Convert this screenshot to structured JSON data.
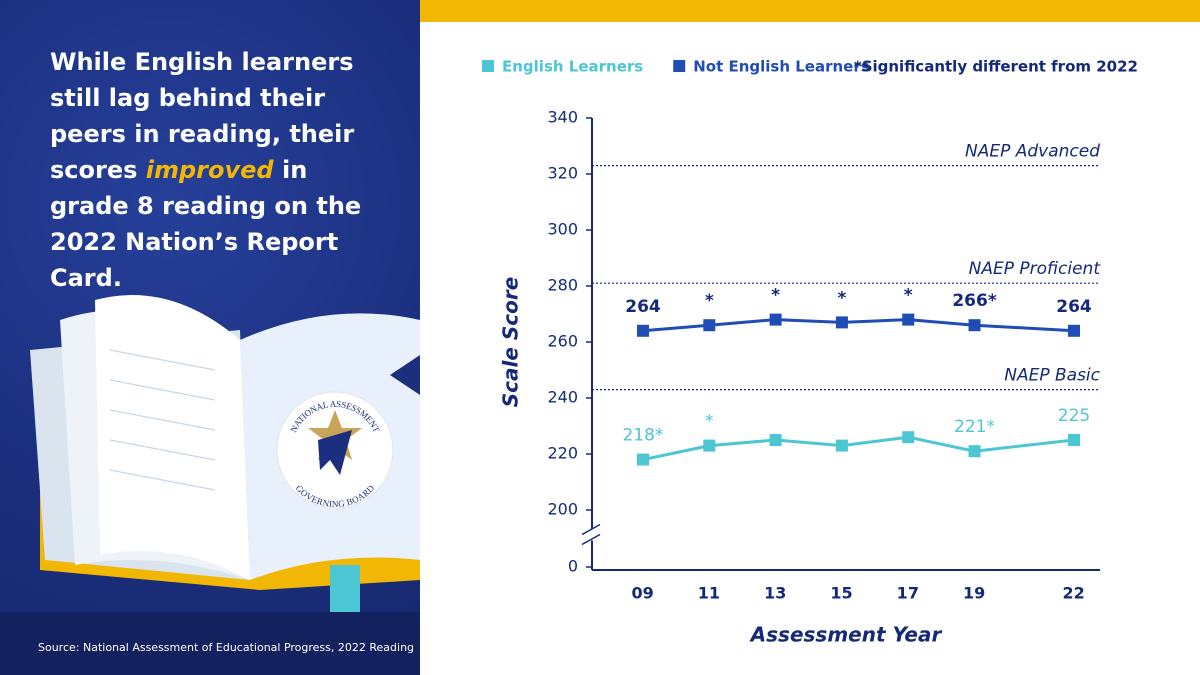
{
  "panel": {
    "headline": [
      "While English learners still lag behind their peers in reading, their scores ",
      "improved",
      " in grade 8 reading on the 2022 Nation’s Report Card."
    ],
    "source": "Source: National Assessment of Educational Progress, 2022 Reading",
    "logo": {
      "top": "NATIONAL ASSESSMENT",
      "bottom": "GOVERNING BOARD"
    }
  },
  "chart_data": {
    "type": "line",
    "x": [
      2009,
      2011,
      2013,
      2015,
      2017,
      2019,
      2022
    ],
    "xticks": [
      {
        "value": 2009,
        "label": " 09"
      },
      {
        "value": 2011,
        "label": " 11"
      },
      {
        "value": 2013,
        "label": " 13"
      },
      {
        "value": 2015,
        "label": " 15"
      },
      {
        "value": 2017,
        "label": " 17"
      },
      {
        "value": 2019,
        "label": " 19"
      },
      {
        "value": 2022,
        "label": " 22"
      }
    ],
    "xlim": [
      2007.5,
      2023
    ],
    "ylim": [
      0,
      340
    ],
    "y_break": [
      0,
      200
    ],
    "yticks": [
      0,
      200,
      220,
      240,
      260,
      280,
      300,
      320,
      340
    ],
    "x_label": "Assessment Year",
    "y_label": "Scale Score",
    "note": "*Significantly different from 2022",
    "reference_lines": [
      {
        "value": 323,
        "label": "NAEP Advanced"
      },
      {
        "value": 281,
        "label": "NAEP Proficient"
      },
      {
        "value": 243,
        "label": "NAEP Basic"
      }
    ],
    "series": [
      {
        "name": "English Learners",
        "color": "#4cc6d3",
        "values": [
          218,
          223,
          225,
          223,
          226,
          221,
          225
        ],
        "value_labels": [
          "218*",
          "*",
          null,
          null,
          null,
          "221*",
          "225"
        ]
      },
      {
        "name": "Not English Learners",
        "color": "#1f4db5",
        "values": [
          264,
          266,
          268,
          267,
          268,
          266,
          264
        ],
        "value_labels": [
          "264",
          "*",
          "*",
          "*",
          "*",
          "266*",
          "264"
        ]
      }
    ]
  }
}
